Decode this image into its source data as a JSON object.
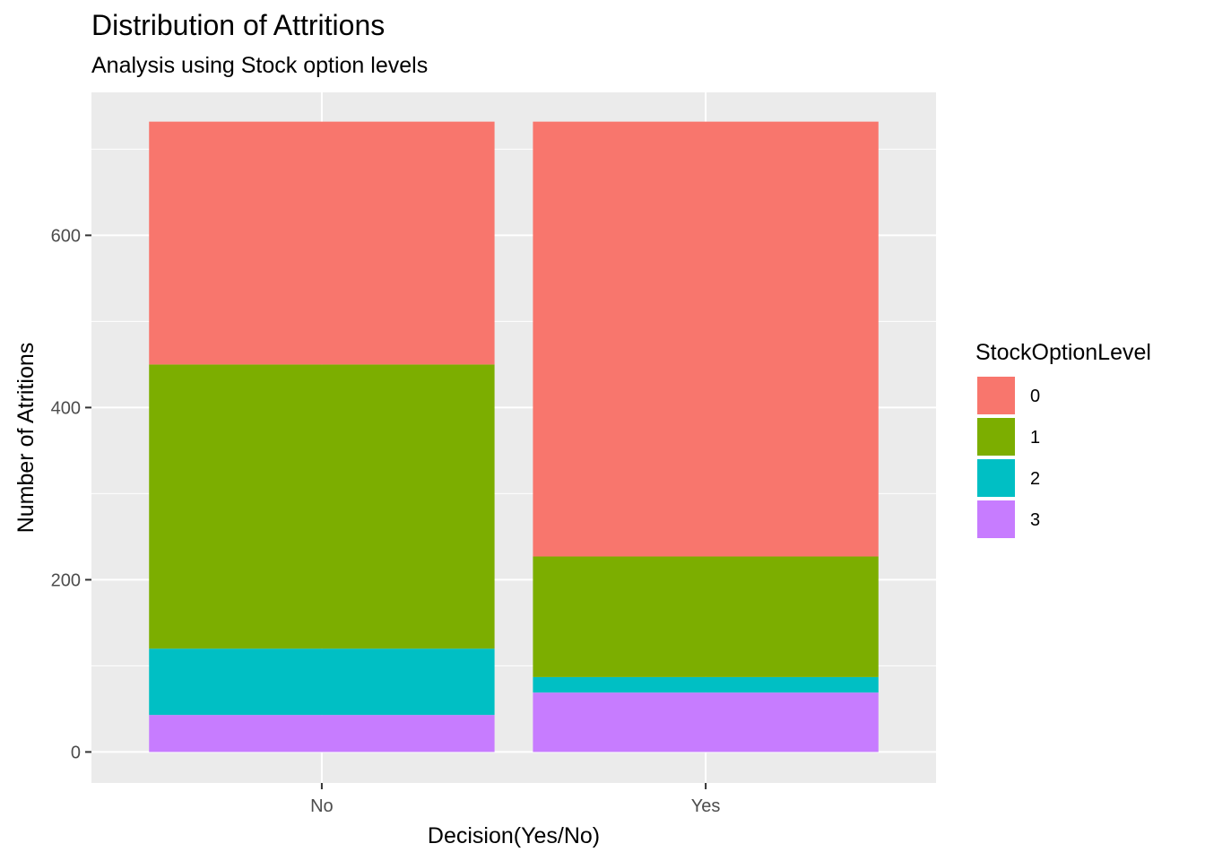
{
  "chart_data": {
    "type": "bar",
    "stacked": true,
    "title": "Distribution of Attritions",
    "subtitle": "Analysis using Stock option levels",
    "xlabel": "Decision(Yes/No)",
    "ylabel": "Number of Atritions",
    "categories": [
      "No",
      "Yes"
    ],
    "ylim": [
      -36,
      766
    ],
    "yticks": [
      0,
      200,
      400,
      600
    ],
    "grid": true,
    "legend_title": "StockOptionLevel",
    "legend_position": "right",
    "series": [
      {
        "name": "0",
        "color": "#F8766D",
        "values": [
          282,
          505
        ]
      },
      {
        "name": "1",
        "color": "#7CAE00",
        "values": [
          330,
          140
        ]
      },
      {
        "name": "2",
        "color": "#00BFC4",
        "values": [
          77,
          18
        ]
      },
      {
        "name": "3",
        "color": "#C77CFF",
        "values": [
          43,
          69
        ]
      }
    ]
  }
}
